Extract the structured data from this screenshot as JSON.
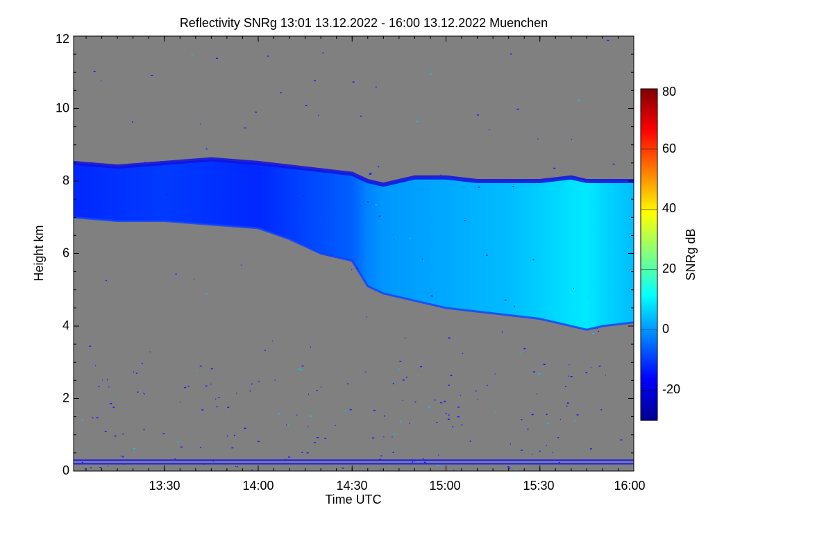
{
  "chart_data": {
    "type": "heatmap",
    "title": "Reflectivity SNRg   13:01 13.12.2022 - 16:00 13.12.2022 Muenchen",
    "xlabel": "Time UTC",
    "ylabel": "Height km",
    "colorbar_label": "SNRg dB",
    "x_ticks": [
      "13:30",
      "14:00",
      "14:30",
      "15:00",
      "15:30",
      "16:00"
    ],
    "y_ticks": [
      "0",
      "2",
      "4",
      "6",
      "8",
      "10",
      "12"
    ],
    "colorbar_ticks": [
      "-20",
      "0",
      "20",
      "40",
      "60",
      "80"
    ],
    "xlim": [
      "13:01",
      "16:00"
    ],
    "ylim": [
      0,
      12
    ],
    "colorbar_range": [
      -30,
      80
    ],
    "missing_color": "#808080",
    "cloud_layer": {
      "time": [
        "13:01",
        "13:15",
        "13:30",
        "13:45",
        "14:00",
        "14:10",
        "14:20",
        "14:30",
        "14:35",
        "14:40",
        "14:50",
        "15:00",
        "15:10",
        "15:20",
        "15:30",
        "15:40",
        "15:45",
        "15:50",
        "16:00"
      ],
      "top_km": [
        8.5,
        8.4,
        8.5,
        8.6,
        8.5,
        8.4,
        8.3,
        8.2,
        8.0,
        7.9,
        8.1,
        8.1,
        8.0,
        8.0,
        8.0,
        8.1,
        8.0,
        8.0,
        8.0
      ],
      "base_km": [
        7.0,
        6.9,
        6.9,
        6.8,
        6.7,
        6.4,
        6.0,
        5.8,
        5.1,
        4.9,
        4.7,
        4.5,
        4.4,
        4.3,
        4.2,
        4.0,
        3.9,
        4.0,
        4.1
      ],
      "peak_snr_db": [
        -12,
        -11,
        -10,
        -11,
        -12,
        -10,
        -8,
        -6,
        -2,
        0,
        1,
        2,
        3,
        4,
        6,
        8,
        9,
        7,
        4
      ]
    },
    "ground_clutter_km": [
      0.2,
      0.3
    ]
  }
}
